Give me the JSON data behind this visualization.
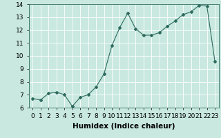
{
  "x": [
    0,
    1,
    2,
    3,
    4,
    5,
    6,
    7,
    8,
    9,
    10,
    11,
    12,
    13,
    14,
    15,
    16,
    17,
    18,
    19,
    20,
    21,
    22,
    23
  ],
  "y": [
    6.7,
    6.6,
    7.1,
    7.2,
    7.0,
    6.1,
    6.8,
    7.0,
    7.6,
    8.6,
    10.8,
    12.2,
    13.3,
    12.1,
    11.6,
    11.6,
    11.8,
    12.3,
    12.7,
    13.2,
    13.4,
    13.9,
    13.85,
    9.6
  ],
  "xlabel": "Humidex (Indice chaleur)",
  "ylim": [
    6,
    14
  ],
  "xlim": [
    -0.5,
    23.5
  ],
  "yticks": [
    6,
    7,
    8,
    9,
    10,
    11,
    12,
    13,
    14
  ],
  "xticks": [
    0,
    1,
    2,
    3,
    4,
    5,
    6,
    7,
    8,
    9,
    10,
    11,
    12,
    13,
    14,
    15,
    16,
    17,
    18,
    19,
    20,
    21,
    22,
    23
  ],
  "line_color": "#2e6b5e",
  "marker": "D",
  "marker_size": 2.0,
  "bg_color": "#c8e8e0",
  "grid_color": "#ffffff",
  "tick_label_fontsize": 6.5,
  "xlabel_fontsize": 7.5
}
